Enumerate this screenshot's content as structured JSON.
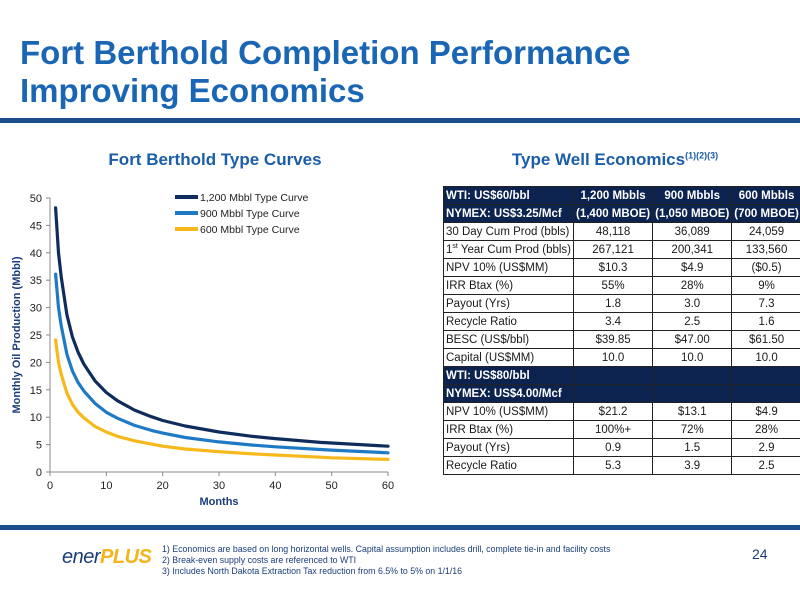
{
  "slide": {
    "title_line1": "Fort Berthold Completion Performance",
    "title_line2": "Improving Economics",
    "page_number": "24",
    "logo": {
      "part1": "ener",
      "part2": "PLUS"
    }
  },
  "chart_section": {
    "heading": "Fort Berthold Type Curves"
  },
  "econ_section": {
    "heading": "Type Well Economics",
    "heading_sup": "(1)(2)(3)"
  },
  "chart_data": {
    "type": "line",
    "title": "Fort Berthold Type Curves",
    "xlabel": "Months",
    "ylabel": "Monthly Oil Production (Mbbl)",
    "xlim": [
      0,
      60
    ],
    "ylim": [
      0,
      50
    ],
    "xticks": [
      0,
      10,
      20,
      30,
      40,
      50,
      60
    ],
    "yticks": [
      0,
      5,
      10,
      15,
      20,
      25,
      30,
      35,
      40,
      45,
      50
    ],
    "legend": "top-right",
    "grid": false,
    "x": [
      1,
      1.5,
      2,
      3,
      4,
      5,
      6,
      8,
      10,
      12,
      15,
      18,
      20,
      24,
      30,
      36,
      40,
      48,
      50,
      60
    ],
    "series": [
      {
        "name": "1,200 Mbbl Type Curve",
        "color": "#0f2d5c",
        "values": [
          48.2,
          40.0,
          35.5,
          28.7,
          24.6,
          21.8,
          19.7,
          16.6,
          14.5,
          13.0,
          11.3,
          10.1,
          9.4,
          8.4,
          7.3,
          6.5,
          6.1,
          5.4,
          5.3,
          4.7
        ]
      },
      {
        "name": "900 Mbbl Type Curve",
        "color": "#1f7ac6",
        "values": [
          36.1,
          30.0,
          26.6,
          21.5,
          18.4,
          16.3,
          14.8,
          12.5,
          10.9,
          9.8,
          8.5,
          7.6,
          7.1,
          6.3,
          5.5,
          4.9,
          4.6,
          4.1,
          4.0,
          3.5
        ]
      },
      {
        "name": "600 Mbbl Type Curve",
        "color": "#f7b81b",
        "values": [
          24.1,
          20.0,
          17.8,
          14.4,
          12.3,
          10.9,
          9.9,
          8.3,
          7.3,
          6.5,
          5.7,
          5.1,
          4.7,
          4.2,
          3.7,
          3.3,
          3.1,
          2.7,
          2.6,
          2.3
        ]
      }
    ]
  },
  "table": {
    "block1_header": {
      "r1": [
        "WTI: US$60/bbl",
        "1,200 Mbbls",
        "900 Mbbls",
        "600 Mbbls"
      ],
      "r2": [
        "NYMEX: US$3.25/Mcf",
        "(1,400 MBOE)",
        "(1,050 MBOE)",
        "(700 MBOE)"
      ]
    },
    "block1_rows": [
      [
        "30 Day Cum Prod (bbls)",
        "48,118",
        "36,089",
        "24,059"
      ],
      [
        "1st Year Cum Prod (bbls)",
        "267,121",
        "200,341",
        "133,560"
      ],
      [
        "NPV 10%  (US$MM)",
        "$10.3",
        "$4.9",
        "($0.5)"
      ],
      [
        "IRR Btax  (%)",
        "55%",
        "28%",
        "9%"
      ],
      [
        "Payout (Yrs)",
        "1.8",
        "3.0",
        "7.3"
      ],
      [
        "Recycle Ratio",
        "3.4",
        "2.5",
        "1.6"
      ],
      [
        "BESC (US$/bbl)",
        "$39.85",
        "$47.00",
        "$61.50"
      ],
      [
        "Capital (US$MM)",
        "10.0",
        "10.0",
        "10.0"
      ]
    ],
    "block2_header": {
      "r1": [
        "WTI: US$80/bbl",
        "",
        "",
        ""
      ],
      "r2": [
        "NYMEX: US$4.00/Mcf",
        "",
        "",
        ""
      ]
    },
    "block2_rows": [
      [
        "NPV 10%  (US$MM)",
        "$21.2",
        "$13.1",
        "$4.9"
      ],
      [
        "IRR Btax  (%)",
        "100%+",
        "72%",
        "28%"
      ],
      [
        "Payout (Yrs)",
        "0.9",
        "1.5",
        "2.9"
      ],
      [
        "Recycle Ratio",
        "5.3",
        "3.9",
        "2.5"
      ]
    ]
  },
  "footnotes": [
    "1)    Economics are based on long horizontal wells. Capital assumption includes drill, complete tie-in and facility costs",
    "2)    Break-even supply costs are referenced to WTI",
    "3)    Includes North Dakota Extraction Tax reduction from 6.5% to 5% on 1/1/16"
  ]
}
